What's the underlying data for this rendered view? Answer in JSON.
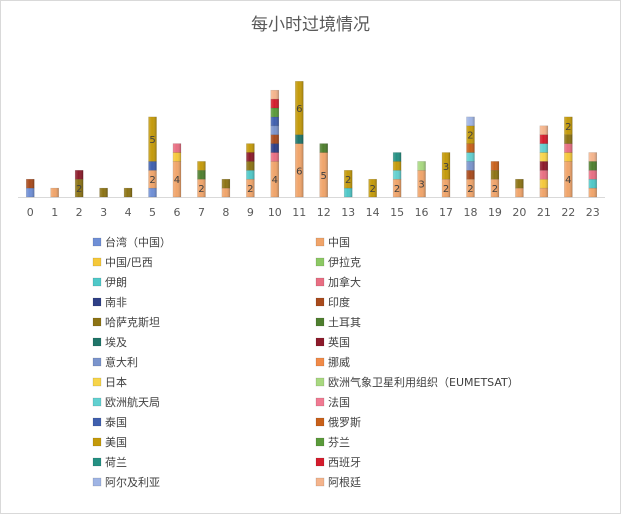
{
  "chart_data": {
    "type": "bar",
    "stacked": true,
    "title": "每小时过境情况",
    "xlabel": "",
    "ylabel": "",
    "ylim": [
      0,
      14
    ],
    "grid": false,
    "legend_position": "bottom",
    "categories": [
      "0",
      "1",
      "2",
      "3",
      "4",
      "5",
      "6",
      "7",
      "8",
      "9",
      "10",
      "11",
      "12",
      "13",
      "14",
      "15",
      "16",
      "17",
      "18",
      "19",
      "20",
      "21",
      "22",
      "23"
    ],
    "series": [
      {
        "name": "台湾（中国）",
        "color": "#6f8fd6",
        "values": [
          1,
          0,
          0,
          0,
          0,
          1,
          0,
          0,
          0,
          0,
          0,
          0,
          0,
          0,
          0,
          0,
          0,
          0,
          0,
          0,
          0,
          0,
          0,
          0
        ]
      },
      {
        "name": "中国",
        "color": "#f0a46a",
        "values": [
          0,
          1,
          0,
          0,
          0,
          2,
          4,
          2,
          1,
          2,
          4,
          6,
          5,
          0,
          0,
          2,
          3,
          2,
          2,
          2,
          1,
          1,
          4,
          1
        ]
      },
      {
        "name": "中国/巴西",
        "color": "#f5c83a",
        "values": [
          0,
          0,
          0,
          0,
          0,
          0,
          1,
          0,
          0,
          0,
          0,
          0,
          0,
          0,
          0,
          0,
          0,
          0,
          0,
          0,
          0,
          1,
          1,
          0
        ]
      },
      {
        "name": "伊拉克",
        "color": "#8cc864",
        "values": [
          0,
          0,
          0,
          0,
          0,
          0,
          0,
          0,
          0,
          0,
          0,
          0,
          0,
          0,
          0,
          0,
          0,
          0,
          0,
          0,
          0,
          0,
          0,
          0
        ]
      },
      {
        "name": "伊朗",
        "color": "#4fc8c8",
        "values": [
          0,
          0,
          0,
          0,
          0,
          0,
          0,
          0,
          0,
          1,
          0,
          0,
          0,
          1,
          0,
          0,
          0,
          0,
          0,
          0,
          0,
          0,
          0,
          1
        ]
      },
      {
        "name": "加拿大",
        "color": "#e86e82",
        "values": [
          0,
          0,
          0,
          0,
          0,
          0,
          1,
          0,
          0,
          0,
          1,
          0,
          0,
          0,
          0,
          0,
          0,
          0,
          0,
          0,
          0,
          1,
          1,
          1
        ]
      },
      {
        "name": "南非",
        "color": "#2e3f86",
        "values": [
          0,
          0,
          0,
          0,
          0,
          0,
          0,
          0,
          0,
          0,
          1,
          0,
          0,
          0,
          0,
          0,
          0,
          0,
          0,
          0,
          0,
          0,
          0,
          0
        ]
      },
      {
        "name": "印度",
        "color": "#a84a1c",
        "values": [
          1,
          0,
          0,
          0,
          0,
          0,
          0,
          0,
          0,
          0,
          1,
          0,
          0,
          0,
          0,
          0,
          0,
          0,
          1,
          0,
          0,
          0,
          0,
          0
        ]
      },
      {
        "name": "哈萨克斯坦",
        "color": "#8c7314",
        "values": [
          0,
          0,
          2,
          1,
          1,
          0,
          0,
          0,
          1,
          1,
          0,
          0,
          0,
          0,
          0,
          0,
          0,
          0,
          0,
          1,
          1,
          0,
          1,
          0
        ]
      },
      {
        "name": "土耳其",
        "color": "#4e7e2e",
        "values": [
          0,
          0,
          0,
          0,
          0,
          0,
          0,
          1,
          0,
          0,
          0,
          0,
          1,
          0,
          0,
          0,
          0,
          0,
          0,
          0,
          0,
          0,
          0,
          1
        ]
      },
      {
        "name": "埃及",
        "color": "#1f7468",
        "values": [
          0,
          0,
          0,
          0,
          0,
          0,
          0,
          0,
          0,
          0,
          0,
          1,
          0,
          0,
          0,
          0,
          0,
          0,
          0,
          0,
          0,
          0,
          0,
          0
        ]
      },
      {
        "name": "英国",
        "color": "#8c1a2a",
        "values": [
          0,
          0,
          1,
          0,
          0,
          0,
          0,
          0,
          0,
          1,
          0,
          0,
          0,
          0,
          0,
          0,
          0,
          0,
          0,
          0,
          0,
          1,
          0,
          0
        ]
      },
      {
        "name": "意大利",
        "color": "#7b94cc",
        "values": [
          0,
          0,
          0,
          0,
          0,
          0,
          0,
          0,
          0,
          0,
          1,
          0,
          0,
          0,
          0,
          0,
          0,
          0,
          1,
          0,
          0,
          0,
          0,
          0
        ]
      },
      {
        "name": "挪威",
        "color": "#f08a48",
        "values": [
          0,
          0,
          0,
          0,
          0,
          0,
          0,
          0,
          0,
          0,
          0,
          0,
          0,
          0,
          0,
          0,
          0,
          0,
          0,
          0,
          0,
          0,
          0,
          0
        ]
      },
      {
        "name": "日本",
        "color": "#f7d44a",
        "values": [
          0,
          0,
          0,
          0,
          0,
          0,
          0,
          0,
          0,
          0,
          0,
          0,
          0,
          0,
          0,
          0,
          0,
          0,
          0,
          0,
          0,
          1,
          0,
          0
        ]
      },
      {
        "name": "欧洲气象卫星利用组织（EUMETSAT）",
        "color": "#a8d880",
        "values": [
          0,
          0,
          0,
          0,
          0,
          0,
          0,
          0,
          0,
          0,
          0,
          0,
          0,
          0,
          0,
          0,
          1,
          0,
          0,
          0,
          0,
          0,
          0,
          0
        ]
      },
      {
        "name": "欧洲航天局",
        "color": "#62d0d0",
        "values": [
          0,
          0,
          0,
          0,
          0,
          0,
          0,
          0,
          0,
          0,
          0,
          0,
          0,
          0,
          0,
          1,
          0,
          0,
          1,
          0,
          0,
          1,
          0,
          0
        ]
      },
      {
        "name": "法国",
        "color": "#f07a92",
        "values": [
          0,
          0,
          0,
          0,
          0,
          0,
          0,
          0,
          0,
          0,
          0,
          0,
          0,
          0,
          0,
          0,
          0,
          0,
          0,
          0,
          0,
          0,
          0,
          0
        ]
      },
      {
        "name": "泰国",
        "color": "#3f5fae",
        "values": [
          0,
          0,
          0,
          0,
          0,
          1,
          0,
          0,
          0,
          0,
          1,
          0,
          0,
          0,
          0,
          0,
          0,
          0,
          0,
          0,
          0,
          0,
          0,
          0
        ]
      },
      {
        "name": "俄罗斯",
        "color": "#c8601a",
        "values": [
          0,
          0,
          0,
          0,
          0,
          0,
          0,
          0,
          0,
          0,
          0,
          0,
          0,
          0,
          0,
          0,
          0,
          0,
          1,
          1,
          0,
          0,
          0,
          0
        ]
      },
      {
        "name": "美国",
        "color": "#c49a0a",
        "values": [
          0,
          0,
          0,
          0,
          0,
          5,
          0,
          1,
          0,
          1,
          0,
          6,
          0,
          2,
          2,
          1,
          0,
          3,
          2,
          0,
          0,
          0,
          2,
          0
        ]
      },
      {
        "name": "芬兰",
        "color": "#5a9a3a",
        "values": [
          0,
          0,
          0,
          0,
          0,
          0,
          0,
          0,
          0,
          0,
          1,
          0,
          0,
          0,
          0,
          0,
          0,
          0,
          0,
          0,
          0,
          0,
          0,
          0
        ]
      },
      {
        "name": "荷兰",
        "color": "#249082",
        "values": [
          0,
          0,
          0,
          0,
          0,
          0,
          0,
          0,
          0,
          0,
          0,
          0,
          0,
          0,
          0,
          1,
          0,
          0,
          0,
          0,
          0,
          0,
          0,
          0
        ]
      },
      {
        "name": "西班牙",
        "color": "#d41c2c",
        "values": [
          0,
          0,
          0,
          0,
          0,
          0,
          0,
          0,
          0,
          0,
          1,
          0,
          0,
          0,
          0,
          0,
          0,
          0,
          0,
          0,
          0,
          1,
          0,
          0
        ]
      },
      {
        "name": "阿尔及利亚",
        "color": "#9fb4e4",
        "values": [
          0,
          0,
          0,
          0,
          0,
          0,
          0,
          0,
          0,
          0,
          0,
          0,
          0,
          0,
          0,
          0,
          0,
          0,
          1,
          0,
          0,
          0,
          0,
          0
        ]
      },
      {
        "name": "阿根廷",
        "color": "#f4b48c",
        "values": [
          0,
          0,
          0,
          0,
          0,
          0,
          0,
          0,
          0,
          0,
          1,
          0,
          0,
          0,
          0,
          0,
          0,
          0,
          0,
          0,
          0,
          1,
          0,
          1
        ]
      }
    ]
  }
}
